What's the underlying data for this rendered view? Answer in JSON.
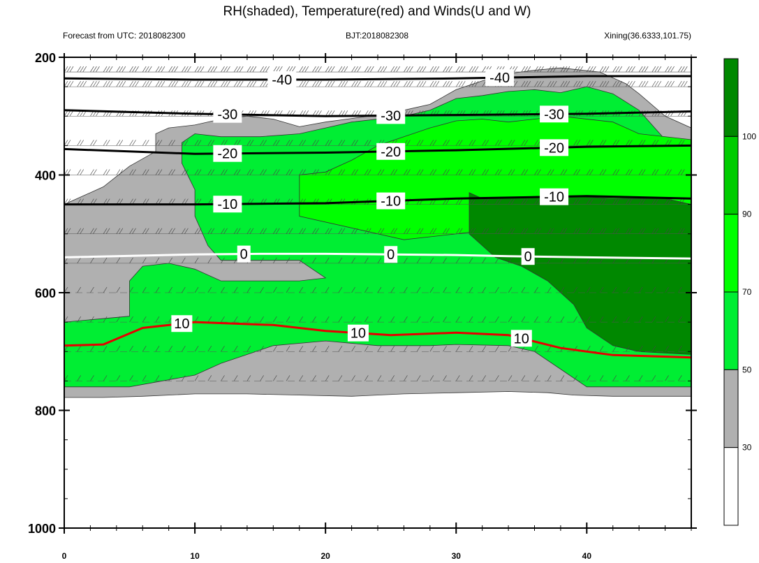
{
  "chart_data": {
    "type": "heatmap",
    "title": "RH(shaded), Temperature(red) and Winds(U and W)",
    "subtitle_left": "Forecast from UTC: 2018082300",
    "subtitle_center": "BJT:2018082308",
    "subtitle_right": "Xining(36.6333,101.75)",
    "x_ticks": [
      "0",
      "10",
      "20",
      "30",
      "40"
    ],
    "x_values": [
      0,
      10,
      20,
      30,
      40
    ],
    "xlim": [
      0,
      48
    ],
    "y_ticks": [
      "200",
      "400",
      "600",
      "800",
      "1000"
    ],
    "y_values": [
      200,
      400,
      600,
      800,
      1000
    ],
    "ylim": [
      200,
      1000
    ],
    "colorbar": {
      "ticks": [
        "30",
        "50",
        "70",
        "90",
        "100"
      ],
      "colors": [
        "#ffffff",
        "#b0b0b0",
        "#00ee33",
        "#00ff00",
        "#00cc00",
        "#008800"
      ]
    },
    "rh_regions": [
      {
        "level": "30-50",
        "color": "#b0b0b0",
        "points": [
          [
            0,
            540
          ],
          [
            0,
            778
          ],
          [
            3,
            778
          ],
          [
            6,
            776
          ],
          [
            10,
            772
          ],
          [
            14,
            772
          ],
          [
            18,
            774
          ],
          [
            22,
            776
          ],
          [
            26,
            772
          ],
          [
            30,
            770
          ],
          [
            34,
            768
          ],
          [
            37,
            770
          ],
          [
            39,
            774
          ],
          [
            42,
            776
          ],
          [
            45,
            776
          ],
          [
            48,
            776
          ],
          [
            48,
            320
          ],
          [
            46,
            300
          ],
          [
            44,
            262
          ],
          [
            43,
            245
          ],
          [
            41,
            225
          ],
          [
            38,
            218
          ],
          [
            36,
            222
          ],
          [
            34,
            228
          ],
          [
            32,
            240
          ],
          [
            30,
            255
          ],
          [
            28,
            280
          ],
          [
            26,
            290
          ],
          [
            24,
            298
          ],
          [
            22,
            304
          ],
          [
            20,
            310
          ],
          [
            18,
            318
          ],
          [
            16,
            305
          ],
          [
            14,
            300
          ],
          [
            12,
            305
          ],
          [
            10,
            315
          ],
          [
            8,
            320
          ],
          [
            7,
            330
          ],
          [
            7,
            360
          ],
          [
            5,
            385
          ],
          [
            3,
            420
          ],
          [
            0,
            450
          ]
        ]
      },
      {
        "level": "50-70",
        "color": "#00ee33",
        "points": [
          [
            0,
            650
          ],
          [
            0,
            760
          ],
          [
            5,
            760
          ],
          [
            10,
            740
          ],
          [
            12,
            720
          ],
          [
            14,
            705
          ],
          [
            16,
            690
          ],
          [
            20,
            682
          ],
          [
            24,
            690
          ],
          [
            28,
            690
          ],
          [
            30,
            688
          ],
          [
            34,
            690
          ],
          [
            36,
            700
          ],
          [
            38,
            730
          ],
          [
            40,
            760
          ],
          [
            48,
            760
          ],
          [
            48,
            350
          ],
          [
            46,
            340
          ],
          [
            44,
            290
          ],
          [
            42,
            262
          ],
          [
            40,
            250
          ],
          [
            38,
            260
          ],
          [
            36,
            255
          ],
          [
            34,
            258
          ],
          [
            32,
            265
          ],
          [
            30,
            270
          ],
          [
            28,
            290
          ],
          [
            26,
            300
          ],
          [
            22,
            310
          ],
          [
            20,
            320
          ],
          [
            18,
            330
          ],
          [
            15,
            335
          ],
          [
            12,
            335
          ],
          [
            10,
            330
          ],
          [
            9,
            345
          ],
          [
            9,
            380
          ],
          [
            10,
            425
          ],
          [
            10,
            470
          ],
          [
            11,
            520
          ],
          [
            12,
            545
          ],
          [
            14,
            545
          ],
          [
            16,
            545
          ],
          [
            18,
            545
          ],
          [
            20,
            575
          ],
          [
            18,
            580
          ],
          [
            12,
            580
          ],
          [
            10,
            560
          ],
          [
            8,
            550
          ],
          [
            6,
            555
          ],
          [
            5,
            580
          ],
          [
            5,
            640
          ]
        ]
      },
      {
        "level": "70-90",
        "color": "#00ff00",
        "points": [
          [
            18,
            400
          ],
          [
            18,
            470
          ],
          [
            22,
            490
          ],
          [
            26,
            510
          ],
          [
            30,
            500
          ],
          [
            34,
            490
          ],
          [
            36,
            482
          ],
          [
            40,
            480
          ],
          [
            44,
            490
          ],
          [
            48,
            490
          ],
          [
            48,
            340
          ],
          [
            44,
            330
          ],
          [
            42,
            310
          ],
          [
            38,
            300
          ],
          [
            34,
            310
          ],
          [
            32,
            305
          ],
          [
            30,
            308
          ],
          [
            28,
            320
          ],
          [
            26,
            335
          ],
          [
            24,
            350
          ],
          [
            22,
            375
          ],
          [
            20,
            395
          ]
        ]
      },
      {
        "level": "90-100",
        "color": "#008800",
        "points": [
          [
            31,
            430
          ],
          [
            31,
            500
          ],
          [
            33,
            540
          ],
          [
            35,
            555
          ],
          [
            37,
            580
          ],
          [
            39,
            620
          ],
          [
            40,
            660
          ],
          [
            42,
            690
          ],
          [
            44,
            700
          ],
          [
            48,
            705
          ],
          [
            48,
            450
          ],
          [
            46,
            440
          ],
          [
            42,
            440
          ],
          [
            38,
            435
          ],
          [
            34,
            438
          ],
          [
            32,
            440
          ]
        ]
      }
    ],
    "temperature_contours": [
      {
        "value": -40,
        "color": "#000000",
        "labels": [
          "-40",
          "-40"
        ],
        "points": [
          [
            0,
            236
          ],
          [
            10,
            238
          ],
          [
            20,
            238
          ],
          [
            30,
            236
          ],
          [
            40,
            232
          ],
          [
            48,
            232
          ]
        ]
      },
      {
        "value": -30,
        "color": "#000000",
        "labels": [
          "-30",
          "-30",
          "-30"
        ],
        "points": [
          [
            0,
            290
          ],
          [
            10,
            296
          ],
          [
            20,
            300
          ],
          [
            30,
            298
          ],
          [
            40,
            296
          ],
          [
            48,
            292
          ]
        ]
      },
      {
        "value": -20,
        "color": "#000000",
        "labels": [
          "-20",
          "-20",
          "-20"
        ],
        "points": [
          [
            0,
            356
          ],
          [
            10,
            364
          ],
          [
            20,
            362
          ],
          [
            30,
            358
          ],
          [
            40,
            352
          ],
          [
            48,
            350
          ]
        ]
      },
      {
        "value": -10,
        "color": "#000000",
        "labels": [
          "-10",
          "-10",
          "-10"
        ],
        "points": [
          [
            0,
            450
          ],
          [
            10,
            450
          ],
          [
            20,
            448
          ],
          [
            30,
            440
          ],
          [
            40,
            436
          ],
          [
            48,
            440
          ]
        ]
      },
      {
        "value": 0,
        "color": "#ffffff",
        "labels": [
          "0",
          "0",
          "0"
        ],
        "points": [
          [
            0,
            540
          ],
          [
            10,
            535
          ],
          [
            15,
            534
          ],
          [
            20,
            534
          ],
          [
            30,
            536
          ],
          [
            34,
            538
          ],
          [
            40,
            540
          ],
          [
            48,
            542
          ]
        ]
      },
      {
        "value": 10,
        "color": "#e60000",
        "labels": [
          "10",
          "10",
          "10"
        ],
        "points": [
          [
            0,
            690
          ],
          [
            3,
            688
          ],
          [
            6,
            660
          ],
          [
            10,
            650
          ],
          [
            16,
            655
          ],
          [
            20,
            665
          ],
          [
            25,
            672
          ],
          [
            30,
            668
          ],
          [
            34,
            672
          ],
          [
            38,
            694
          ],
          [
            42,
            706
          ],
          [
            48,
            710
          ]
        ]
      }
    ]
  }
}
